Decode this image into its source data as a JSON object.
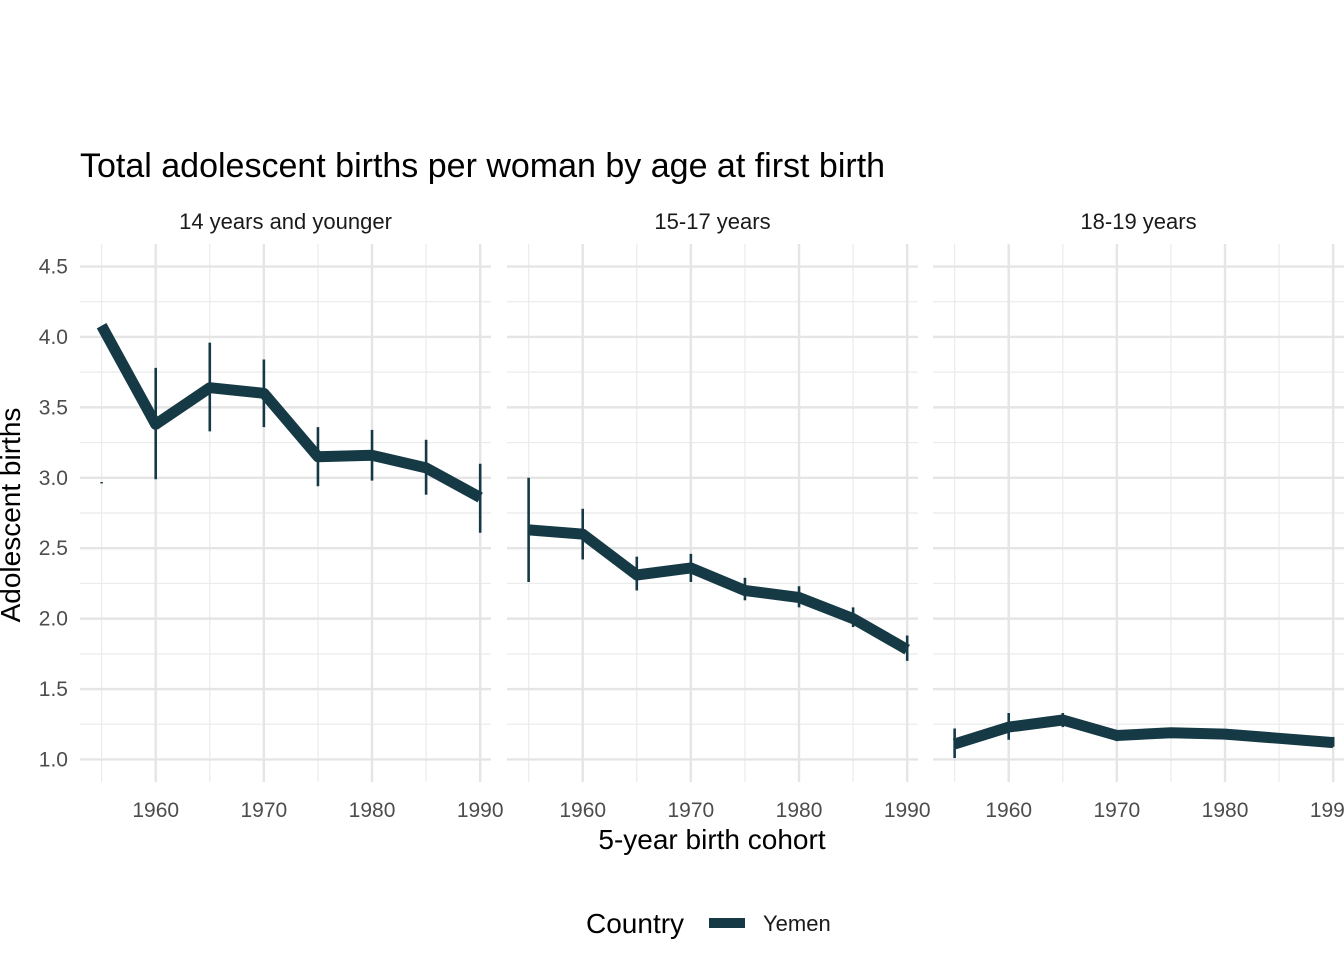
{
  "chart_data": {
    "type": "line",
    "title": "Total adolescent births per woman by age at first birth",
    "xlabel": "5-year birth cohort",
    "ylabel": "Adolescent births",
    "xlim": [
      1953,
      1991
    ],
    "ylim": [
      0.84,
      4.66
    ],
    "x_ticks": [
      1960,
      1970,
      1980,
      1990
    ],
    "y_ticks": [
      1.0,
      1.5,
      2.0,
      2.5,
      3.0,
      3.5,
      4.0,
      4.5
    ],
    "y_tick_labels": [
      "1.0",
      "1.5",
      "2.0",
      "2.5",
      "3.0",
      "3.5",
      "4.0",
      "4.5"
    ],
    "grid": true,
    "legend": {
      "title": "Country",
      "position": "bottom",
      "entries": [
        "Yemen"
      ]
    },
    "series_color": "#163a45",
    "panels": [
      {
        "label": "14 years and younger",
        "series": [
          {
            "name": "Yemen",
            "x": [
              1955,
              1960,
              1965,
              1970,
              1975,
              1980,
              1985,
              1990
            ],
            "y": [
              4.08,
              3.38,
              3.64,
              3.6,
              3.15,
              3.16,
              3.07,
              2.86
            ],
            "lower": [
              2.96,
              2.99,
              3.33,
              3.36,
              2.94,
              2.98,
              2.88,
              2.61
            ],
            "upper": [
              2.97,
              3.78,
              3.96,
              3.84,
              3.36,
              3.34,
              3.27,
              3.1
            ]
          }
        ]
      },
      {
        "label": "15-17 years",
        "series": [
          {
            "name": "Yemen",
            "x": [
              1955,
              1960,
              1965,
              1970,
              1975,
              1980,
              1985,
              1990
            ],
            "y": [
              2.63,
              2.6,
              2.31,
              2.36,
              2.2,
              2.15,
              2.0,
              1.78
            ],
            "lower": [
              2.26,
              2.42,
              2.2,
              2.26,
              2.13,
              2.08,
              1.94,
              1.7
            ],
            "upper": [
              3.0,
              2.78,
              2.44,
              2.46,
              2.29,
              2.23,
              2.08,
              1.88
            ]
          }
        ]
      },
      {
        "label": "18-19 years",
        "series": [
          {
            "name": "Yemen",
            "x": [
              1955,
              1960,
              1965,
              1970,
              1975,
              1980,
              1985,
              1990
            ],
            "y": [
              1.11,
              1.23,
              1.28,
              1.17,
              1.19,
              1.18,
              1.15,
              1.12
            ],
            "lower": [
              1.01,
              1.14,
              1.23,
              1.13,
              1.16,
              1.15,
              1.12,
              1.09
            ],
            "upper": [
              1.22,
              1.33,
              1.33,
              1.21,
              1.22,
              1.21,
              1.18,
              1.16
            ]
          }
        ]
      }
    ]
  }
}
